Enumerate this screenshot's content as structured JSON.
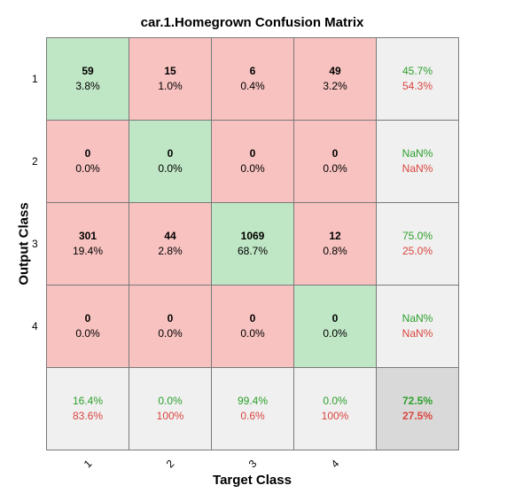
{
  "chart_data": {
    "type": "heatmap",
    "title": "car.1.Homegrown Confusion Matrix",
    "xlabel": "Target Class",
    "ylabel": "Output Class",
    "x_tick_labels": [
      "1",
      "2",
      "3",
      "4"
    ],
    "y_tick_labels": [
      "1",
      "2",
      "3",
      "4"
    ],
    "counts": [
      [
        59,
        15,
        6,
        49
      ],
      [
        0,
        0,
        0,
        0
      ],
      [
        301,
        44,
        1069,
        12
      ],
      [
        0,
        0,
        0,
        0
      ]
    ],
    "percents": [
      [
        "3.8%",
        "1.0%",
        "0.4%",
        "3.2%"
      ],
      [
        "0.0%",
        "0.0%",
        "0.0%",
        "0.0%"
      ],
      [
        "19.4%",
        "2.8%",
        "68.7%",
        "0.8%"
      ],
      [
        "0.0%",
        "0.0%",
        "0.0%",
        "0.0%"
      ]
    ],
    "row_summary": [
      {
        "correct": "45.7%",
        "incorrect": "54.3%"
      },
      {
        "correct": "NaN%",
        "incorrect": "NaN%"
      },
      {
        "correct": "75.0%",
        "incorrect": "25.0%"
      },
      {
        "correct": "NaN%",
        "incorrect": "NaN%"
      }
    ],
    "col_summary": [
      {
        "correct": "16.4%",
        "incorrect": "83.6%"
      },
      {
        "correct": "0.0%",
        "incorrect": "100%"
      },
      {
        "correct": "99.4%",
        "incorrect": "0.6%"
      },
      {
        "correct": "0.0%",
        "incorrect": "100%"
      }
    ],
    "overall": {
      "correct": "72.5%",
      "incorrect": "27.5%"
    },
    "colors": {
      "diagonal": "#bfe6c5",
      "off_diagonal": "#f7c2c0",
      "summary": "#f0f0f0",
      "overall": "#d9d9d9",
      "correct_text": "#2ca02c",
      "incorrect_text": "#d9453f"
    }
  }
}
